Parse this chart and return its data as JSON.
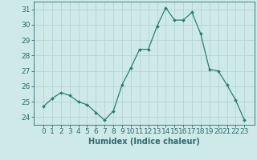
{
  "x": [
    0,
    1,
    2,
    3,
    4,
    5,
    6,
    7,
    8,
    9,
    10,
    11,
    12,
    13,
    14,
    15,
    16,
    17,
    18,
    19,
    20,
    21,
    22,
    23
  ],
  "y": [
    24.7,
    25.2,
    25.6,
    25.4,
    25.0,
    24.8,
    24.3,
    23.8,
    24.4,
    26.1,
    27.2,
    28.4,
    28.4,
    29.9,
    31.1,
    30.3,
    30.3,
    30.8,
    29.4,
    27.1,
    27.0,
    26.1,
    25.1,
    23.8
  ],
  "line_color": "#2e7d6e",
  "marker": "D",
  "marker_size": 2,
  "bg_color": "#ceeae8",
  "grid_color": "#b8d4d2",
  "tick_color": "#2e6b6b",
  "xlabel": "Humidex (Indice chaleur)",
  "ylim": [
    23.5,
    31.5
  ],
  "yticks": [
    24,
    25,
    26,
    27,
    28,
    29,
    30,
    31
  ],
  "xticks": [
    0,
    1,
    2,
    3,
    4,
    5,
    6,
    7,
    8,
    9,
    10,
    11,
    12,
    13,
    14,
    15,
    16,
    17,
    18,
    19,
    20,
    21,
    22,
    23
  ],
  "label_fontsize": 7,
  "tick_fontsize": 6.5
}
